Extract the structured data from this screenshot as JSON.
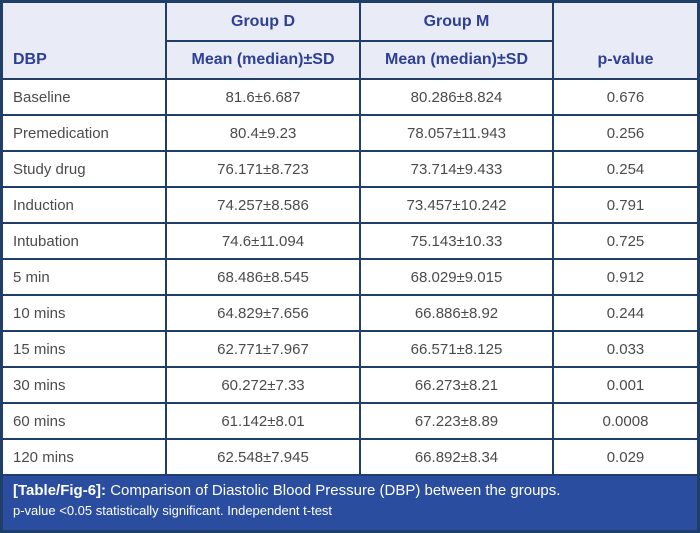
{
  "colors": {
    "border_color": "#1f3f68",
    "header_bg": "#e9ecf6",
    "header_text": "#2e4094",
    "body_text": "#4b4b4b",
    "caption_bg": "#2a4d9f",
    "caption_text": "#ffffff"
  },
  "table": {
    "header": {
      "col1_label": "DBP",
      "group_d": "Group D",
      "group_m": "Group M",
      "group_d_sub": "Mean (median)±SD",
      "group_m_sub": "Mean (median)±SD",
      "p_value": "p-value"
    },
    "rows": [
      {
        "label": "Baseline",
        "group_d": "81.6±6.687",
        "group_m": "80.286±8.824",
        "p": "0.676"
      },
      {
        "label": "Premedication",
        "group_d": "80.4±9.23",
        "group_m": "78.057±11.943",
        "p": "0.256"
      },
      {
        "label": "Study drug",
        "group_d": "76.171±8.723",
        "group_m": "73.714±9.433",
        "p": "0.254"
      },
      {
        "label": "Induction",
        "group_d": "74.257±8.586",
        "group_m": "73.457±10.242",
        "p": "0.791"
      },
      {
        "label": "Intubation",
        "group_d": "74.6±11.094",
        "group_m": "75.143±10.33",
        "p": "0.725"
      },
      {
        "label": "5 min",
        "group_d": "68.486±8.545",
        "group_m": "68.029±9.015",
        "p": "0.912"
      },
      {
        "label": "10 mins",
        "group_d": "64.829±7.656",
        "group_m": "66.886±8.92",
        "p": "0.244"
      },
      {
        "label": "15 mins",
        "group_d": "62.771±7.967",
        "group_m": "66.571±8.125",
        "p": "0.033"
      },
      {
        "label": "30 mins",
        "group_d": "60.272±7.33",
        "group_m": "66.273±8.21",
        "p": "0.001"
      },
      {
        "label": "60 mins",
        "group_d": "61.142±8.01",
        "group_m": "67.223±8.89",
        "p": "0.0008"
      },
      {
        "label": "120 mins",
        "group_d": "62.548±7.945",
        "group_m": "66.892±8.34",
        "p": "0.029"
      }
    ],
    "caption": {
      "tag": "[Table/Fig-6]:",
      "text": " Comparison of Diastolic Blood Pressure (DBP) between the groups.",
      "note": "p-value <0.05 statistically significant. Independent t-test"
    }
  }
}
